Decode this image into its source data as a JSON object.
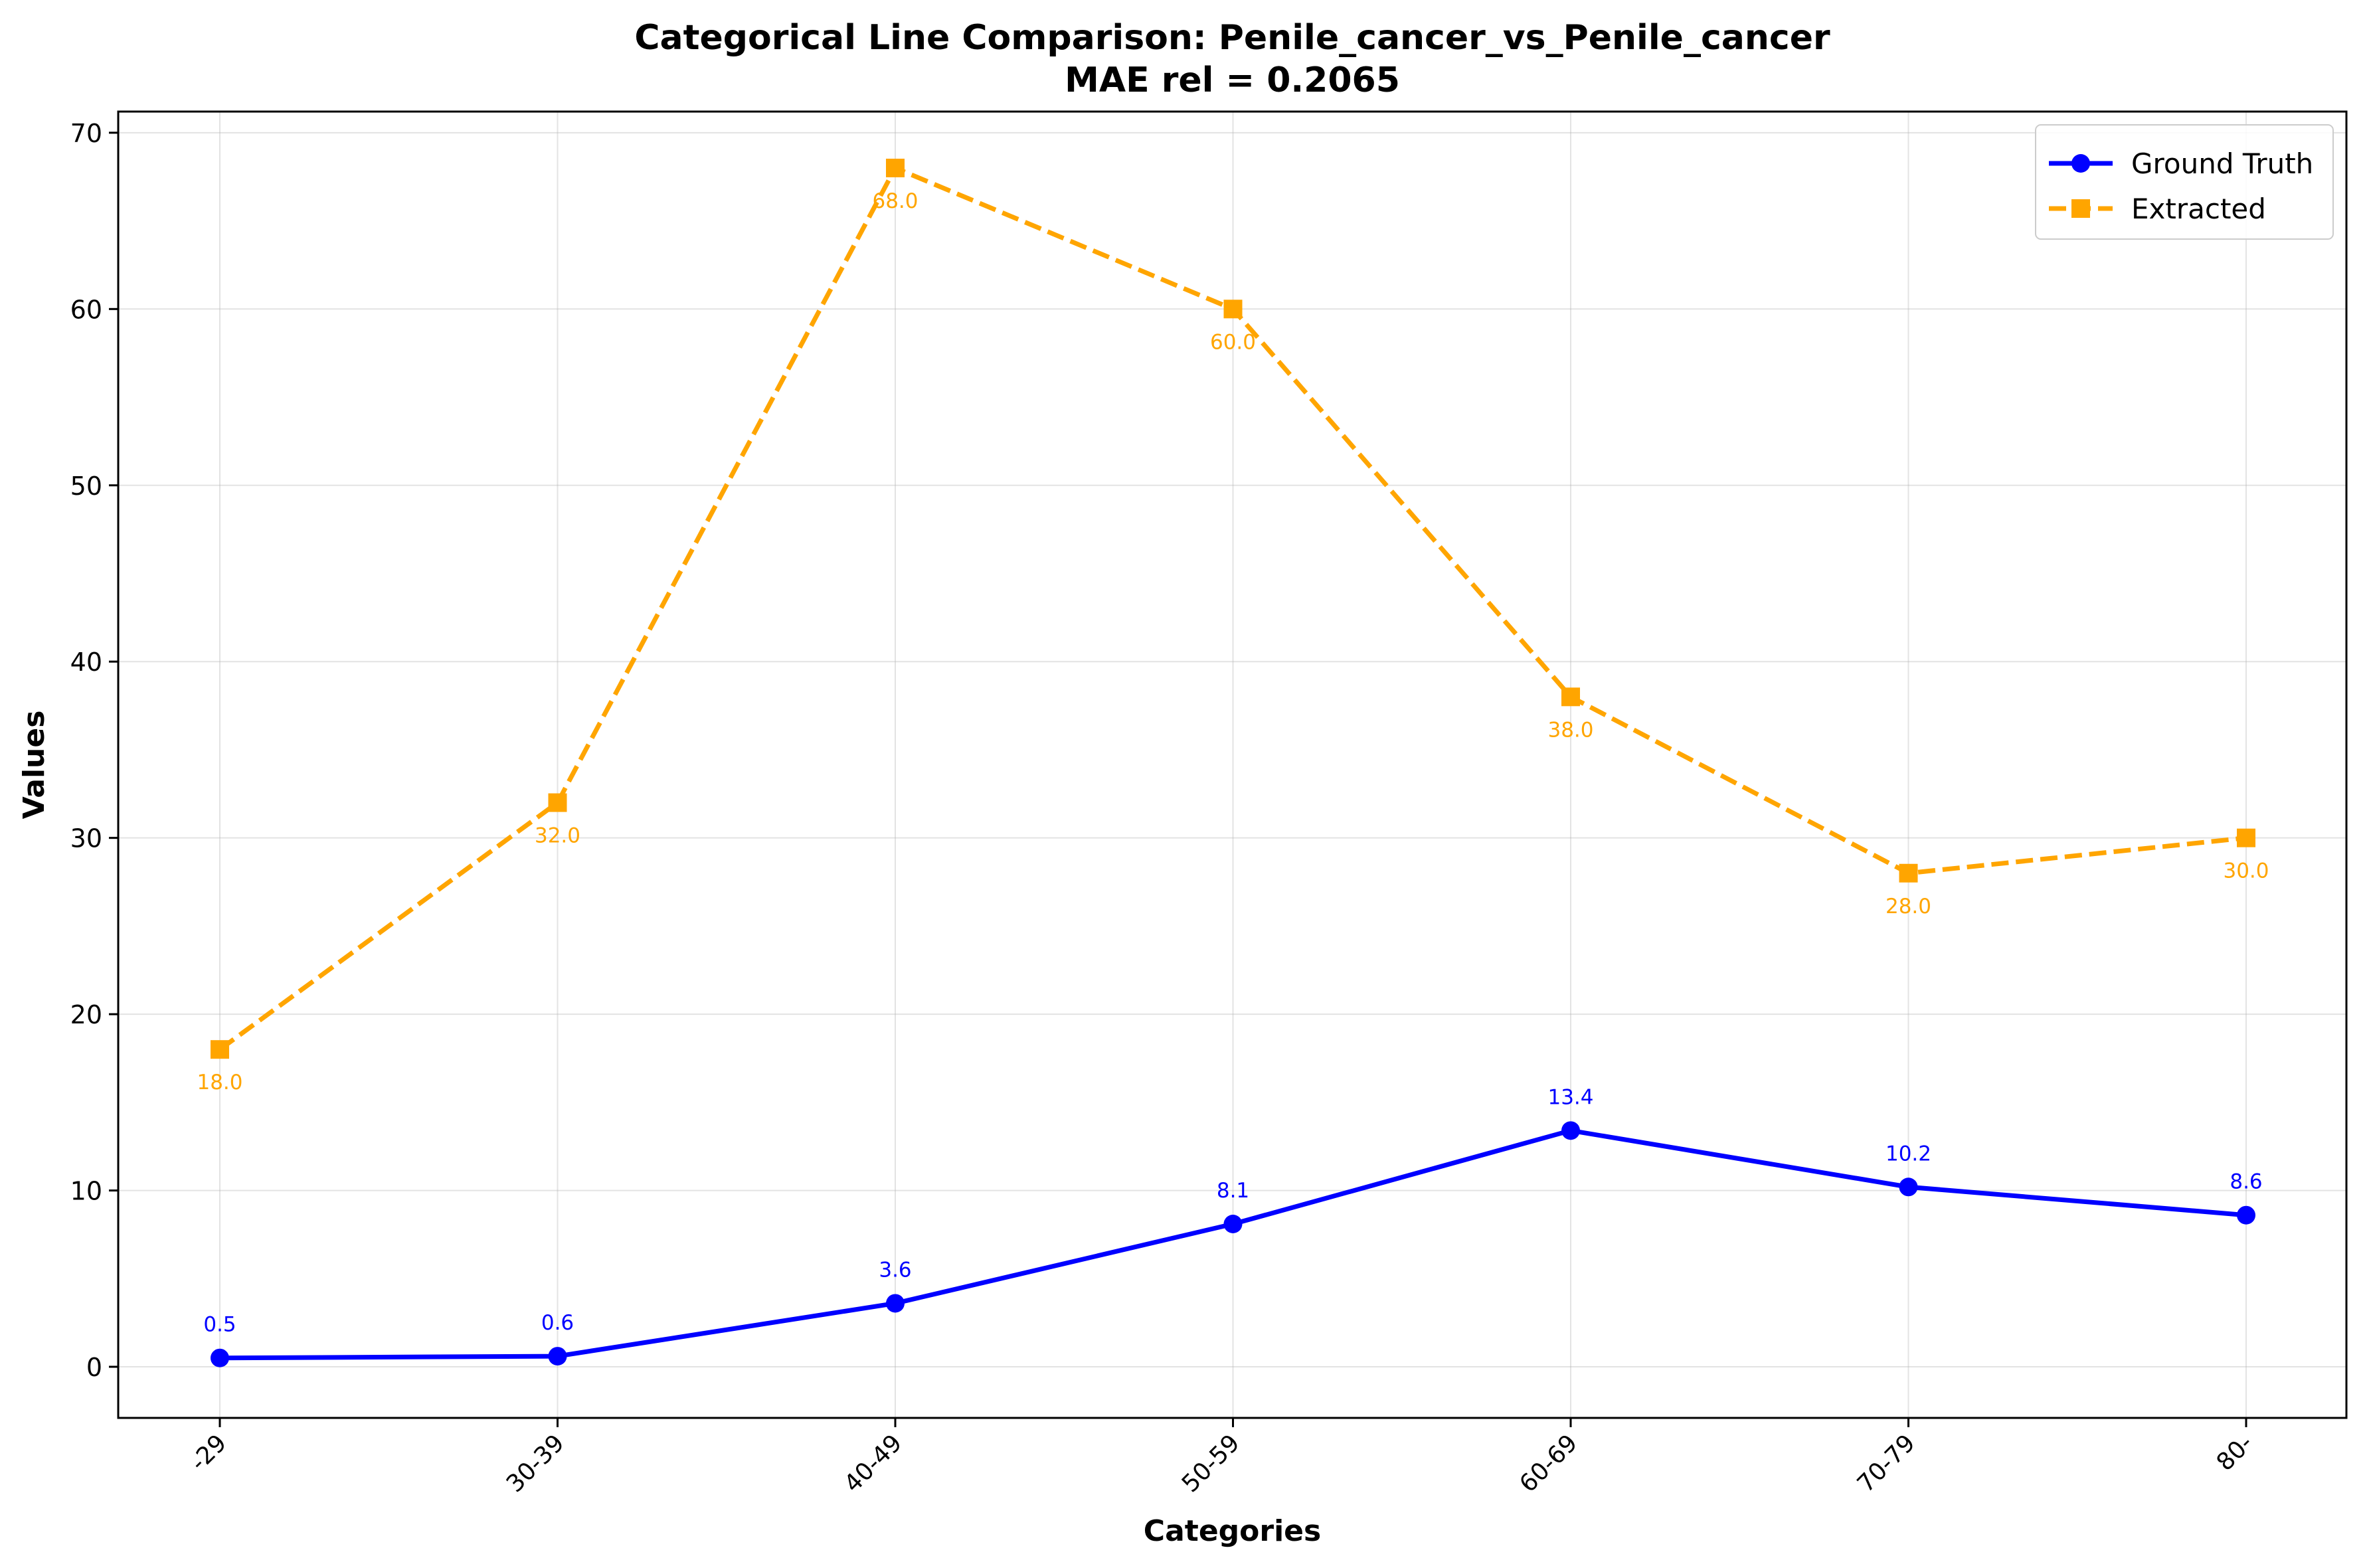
{
  "chart_data": {
    "type": "line",
    "title_line1": "Categorical Line Comparison: Penile_cancer_vs_Penile_cancer",
    "title_line2": "MAE rel = 0.2065",
    "xlabel": "Categories",
    "ylabel": "Values",
    "categories": [
      "-29",
      "30-39",
      "40-49",
      "50-59",
      "60-69",
      "70-79",
      "80-"
    ],
    "ylim": [
      -2.9,
      71.2
    ],
    "yticks": [
      0,
      10,
      20,
      30,
      40,
      50,
      60,
      70
    ],
    "grid": true,
    "legend_position": "top-right",
    "series": [
      {
        "name": "Ground Truth",
        "values": [
          0.5,
          0.6,
          3.6,
          8.1,
          13.4,
          10.2,
          8.6
        ],
        "labels": [
          "0.5",
          "0.6",
          "3.6",
          "8.1",
          "13.4",
          "10.2",
          "8.6"
        ],
        "color": "#0000ff",
        "line_style": "solid",
        "marker": "circle",
        "label_position": "above"
      },
      {
        "name": "Extracted",
        "values": [
          18.0,
          32.0,
          68.0,
          60.0,
          38.0,
          28.0,
          30.0
        ],
        "labels": [
          "18.0",
          "32.0",
          "68.0",
          "60.0",
          "38.0",
          "28.0",
          "30.0"
        ],
        "color": "#ffa500",
        "line_style": "dashed",
        "marker": "square",
        "label_position": "below"
      }
    ]
  }
}
